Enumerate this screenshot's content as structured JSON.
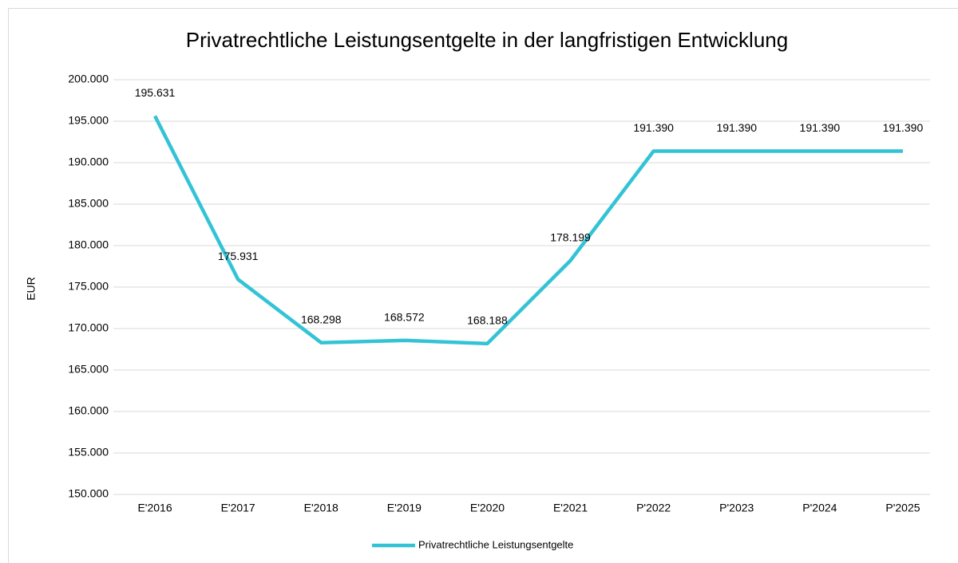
{
  "chart_data": {
    "type": "line",
    "title": "Privatrechtliche Leistungsentgelte in der langfristigen Entwicklung",
    "y_label": "EUR",
    "categories": [
      "E'2016",
      "E'2017",
      "E'2018",
      "E'2019",
      "E'2020",
      "E'2021",
      "P'2022",
      "P'2023",
      "P'2024",
      "P'2025"
    ],
    "series": [
      {
        "name": "Privatrechtliche Leistungsentgelte",
        "color": "#33c3d6",
        "values": [
          195631,
          175931,
          168298,
          168572,
          168188,
          178199,
          191390,
          191390,
          191390,
          191390
        ],
        "value_labels": [
          "195.631",
          "175.931",
          "168.298",
          "168.572",
          "168.188",
          "178.199",
          "191.390",
          "191.390",
          "191.390",
          "191.390"
        ]
      }
    ],
    "ylim": [
      150000,
      200000
    ],
    "yticks": [
      {
        "value": 150000,
        "label": "150.000"
      },
      {
        "value": 155000,
        "label": "155.000"
      },
      {
        "value": 160000,
        "label": "160.000"
      },
      {
        "value": 165000,
        "label": "165.000"
      },
      {
        "value": 170000,
        "label": "170.000"
      },
      {
        "value": 175000,
        "label": "175.000"
      },
      {
        "value": 180000,
        "label": "180.000"
      },
      {
        "value": 185000,
        "label": "185.000"
      },
      {
        "value": 190000,
        "label": "190.000"
      },
      {
        "value": 195000,
        "label": "195.000"
      },
      {
        "value": 200000,
        "label": "200.000"
      }
    ],
    "grid": true,
    "legend": "bottom"
  }
}
